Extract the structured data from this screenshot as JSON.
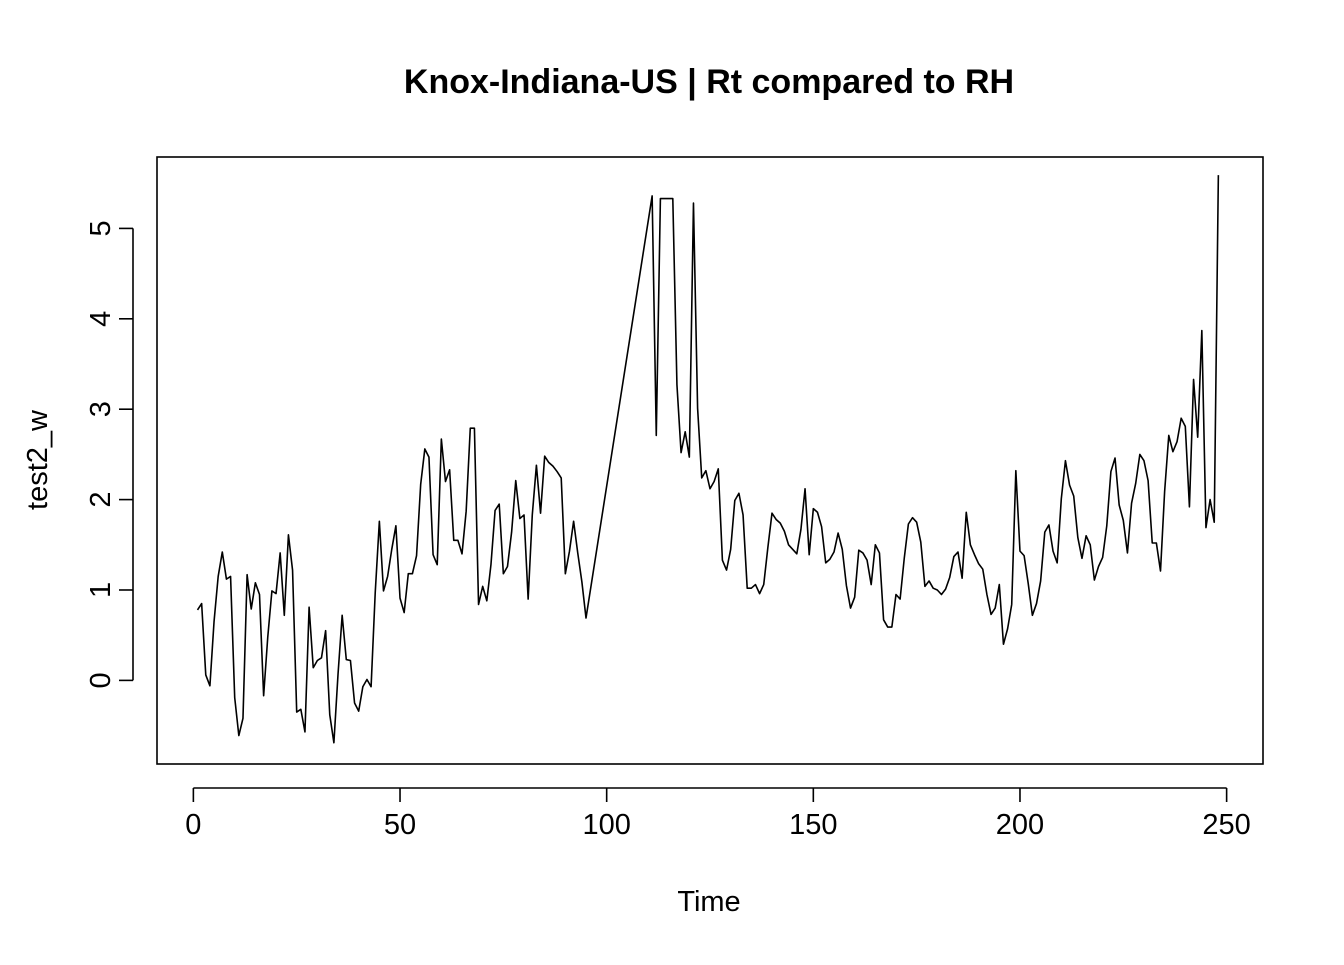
{
  "chart_data": {
    "type": "line",
    "title": "Knox-Indiana-US | Rt compared to RH",
    "xlabel": "Time",
    "ylabel": "test2_w",
    "xlim": [
      -8.8,
      258.8
    ],
    "ylim": [
      -0.925,
      5.79
    ],
    "x_ticks": [
      "0",
      "50",
      "100",
      "150",
      "200",
      "250"
    ],
    "y_ticks": [
      "0",
      "1",
      "2",
      "3",
      "4",
      "5"
    ],
    "grid": false,
    "legend": "none",
    "line_color": "#000000",
    "series": [
      {
        "x": [
          1,
          2,
          3,
          4,
          5,
          6,
          7,
          8,
          9,
          10,
          11,
          12,
          13,
          14,
          15,
          16,
          17,
          18,
          19,
          20,
          21,
          22,
          23,
          24,
          25,
          26,
          27,
          28,
          29,
          30,
          31,
          32,
          33,
          34,
          35,
          36,
          37,
          38,
          39,
          40,
          41,
          42,
          43,
          44,
          45,
          46,
          47,
          48,
          49,
          50,
          51,
          52,
          53,
          54,
          55,
          56,
          57,
          58,
          59,
          60,
          61,
          62,
          63,
          64,
          65,
          66,
          67,
          68,
          69,
          70,
          71,
          72,
          73,
          74,
          75,
          76,
          77,
          78,
          79,
          80,
          81,
          82,
          83,
          84,
          85,
          86,
          87,
          88,
          89,
          90,
          91,
          92,
          93,
          94,
          95,
          111,
          112,
          113,
          116,
          117,
          118,
          119,
          120,
          121,
          122,
          123,
          124,
          125,
          126,
          127,
          128,
          129,
          130,
          131,
          132,
          133,
          134,
          135,
          136,
          137,
          138,
          139,
          140,
          141,
          142,
          143,
          144,
          145,
          146,
          147,
          148,
          149,
          150,
          151,
          152,
          153,
          154,
          155,
          156,
          157,
          158,
          159,
          160,
          161,
          162,
          163,
          164,
          165,
          166,
          167,
          168,
          169,
          170,
          171,
          172,
          173,
          174,
          175,
          176,
          177,
          178,
          179,
          180,
          181,
          182,
          183,
          184,
          185,
          186,
          187,
          188,
          189,
          190,
          191,
          192,
          193,
          194,
          195,
          196,
          197,
          198,
          199,
          200,
          201,
          202,
          203,
          204,
          205,
          206,
          207,
          208,
          209,
          210,
          211,
          212,
          213,
          214,
          215,
          216,
          217,
          218,
          219,
          220,
          221,
          222,
          223,
          224,
          225,
          226,
          227,
          228,
          229,
          230,
          231,
          232,
          233,
          234,
          235,
          236,
          237,
          238,
          239,
          240,
          241,
          242,
          243,
          244,
          245,
          246,
          247,
          248
        ],
        "values": [
          0.78,
          0.85,
          0.06,
          -0.06,
          0.65,
          1.15,
          1.42,
          1.12,
          1.15,
          -0.19,
          -0.61,
          -0.42,
          1.17,
          0.79,
          1.08,
          0.95,
          -0.17,
          0.48,
          0.99,
          0.96,
          1.41,
          0.72,
          1.61,
          1.22,
          -0.35,
          -0.32,
          -0.57,
          0.81,
          0.14,
          0.22,
          0.25,
          0.55,
          -0.38,
          -0.69,
          0.07,
          0.72,
          0.23,
          0.22,
          -0.25,
          -0.34,
          -0.07,
          0.01,
          -0.07,
          0.97,
          1.76,
          0.99,
          1.15,
          1.45,
          1.71,
          0.91,
          0.75,
          1.18,
          1.18,
          1.38,
          2.17,
          2.56,
          2.47,
          1.39,
          1.28,
          2.67,
          2.2,
          2.33,
          1.55,
          1.55,
          1.4,
          1.87,
          2.79,
          2.79,
          0.84,
          1.04,
          0.88,
          1.28,
          1.88,
          1.95,
          1.18,
          1.26,
          1.64,
          2.21,
          1.79,
          1.83,
          0.9,
          1.83,
          2.38,
          1.85,
          2.48,
          2.41,
          2.37,
          2.31,
          2.24,
          1.18,
          1.43,
          1.76,
          1.41,
          1.09,
          0.69,
          5.36,
          2.71,
          5.33,
          5.33,
          3.27,
          2.52,
          2.75,
          2.47,
          5.28,
          3.01,
          2.24,
          2.32,
          2.12,
          2.2,
          2.34,
          1.33,
          1.22,
          1.45,
          1.99,
          2.07,
          1.83,
          1.02,
          1.02,
          1.06,
          0.96,
          1.06,
          1.47,
          1.85,
          1.78,
          1.74,
          1.65,
          1.5,
          1.45,
          1.4,
          1.67,
          2.12,
          1.39,
          1.9,
          1.86,
          1.7,
          1.3,
          1.34,
          1.42,
          1.63,
          1.45,
          1.05,
          0.8,
          0.92,
          1.44,
          1.41,
          1.33,
          1.06,
          1.5,
          1.41,
          0.67,
          0.59,
          0.59,
          0.95,
          0.9,
          1.35,
          1.73,
          1.8,
          1.75,
          1.53,
          1.04,
          1.1,
          1.02,
          1.0,
          0.95,
          1.01,
          1.14,
          1.37,
          1.42,
          1.13,
          1.86,
          1.5,
          1.39,
          1.29,
          1.23,
          0.95,
          0.73,
          0.8,
          1.06,
          0.4,
          0.57,
          0.84,
          2.32,
          1.43,
          1.38,
          1.07,
          0.72,
          0.85,
          1.1,
          1.64,
          1.72,
          1.43,
          1.3,
          2.01,
          2.43,
          2.16,
          2.04,
          1.58,
          1.35,
          1.6,
          1.5,
          1.11,
          1.26,
          1.36,
          1.71,
          2.31,
          2.46,
          1.94,
          1.77,
          1.41,
          1.96,
          2.18,
          2.5,
          2.43,
          2.21,
          1.52,
          1.52,
          1.21,
          2.09,
          2.71,
          2.53,
          2.64,
          2.9,
          2.81,
          1.92,
          3.33,
          2.69,
          3.87,
          1.69,
          2.0,
          1.75,
          5.59
        ]
      }
    ]
  }
}
